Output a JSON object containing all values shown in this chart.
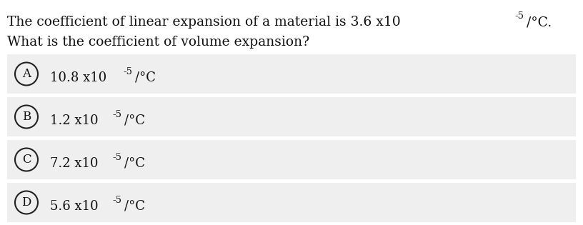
{
  "title_line1_main": "The coefficient of linear expansion of a material is 3.6 x10",
  "title_line1_super": "-5",
  "title_line1_end": "/°C.",
  "title_line2": "What is the coefficient of volume expansion?",
  "options": [
    {
      "label": "A",
      "prefix": "10.8 ",
      "x10": "x10",
      "super": "-5",
      "unit": "/°C"
    },
    {
      "label": "B",
      "prefix": "1.2 ",
      "x10": "x10",
      "super": "-5",
      "unit": "/°C"
    },
    {
      "label": "C",
      "prefix": "7.2 ",
      "x10": "x10",
      "super": "-5",
      "unit": "/°C"
    },
    {
      "label": "D",
      "prefix": "5.6 ",
      "x10": "x10",
      "super": "-5",
      "unit": "/°C"
    }
  ],
  "bg_color": "#ffffff",
  "option_bg": "#efefef",
  "circle_edge_color": "#222222",
  "text_color": "#111111",
  "fig_width": 8.16,
  "fig_height": 3.15,
  "dpi": 100
}
